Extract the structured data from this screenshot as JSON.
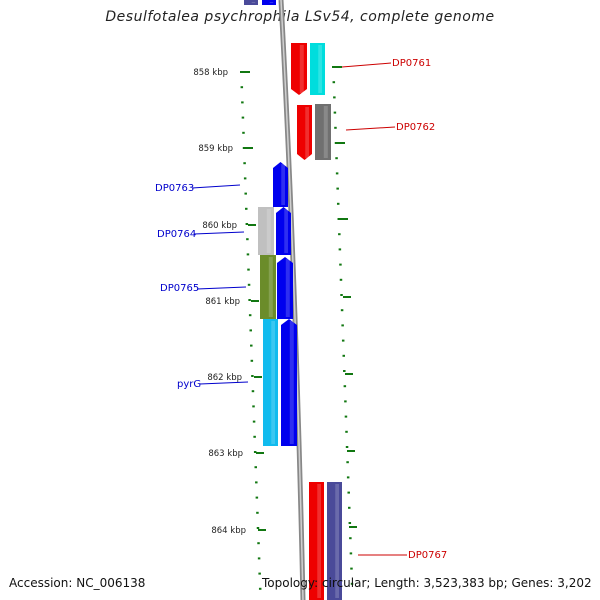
{
  "title": "Desulfotalea psychrophila LSv54, complete genome",
  "footer": {
    "accession": "Accession: NC_006138",
    "topology": "Topology: circular; Length: 3,523,383 bp; Genes: 3,202"
  },
  "ruler": {
    "ticks": [
      "858 kbp",
      "859 kbp",
      "860 kbp",
      "861 kbp",
      "862 kbp",
      "863 kbp",
      "864 kbp"
    ]
  },
  "colors": {
    "tick": "#117711",
    "backbone": "#999999",
    "left_label": "#0000cc",
    "right_label": "#cc0000",
    "red": "#ee0000",
    "cyan": "#00dddd",
    "gray": "#707070",
    "blue": "#0000ee",
    "light_gray": "#c0c0c0",
    "olive": "#6b8c2a",
    "sky": "#11bbee",
    "slate": "#4a4a99"
  },
  "genes": [
    {
      "name": "DP0761",
      "side": "right"
    },
    {
      "name": "DP0762",
      "side": "right"
    },
    {
      "name": "DP0763",
      "side": "left"
    },
    {
      "name": "DP0764",
      "side": "left"
    },
    {
      "name": "DP0765",
      "side": "left"
    },
    {
      "name": "pyrG",
      "side": "left"
    },
    {
      "name": "DP0767",
      "side": "right"
    }
  ]
}
